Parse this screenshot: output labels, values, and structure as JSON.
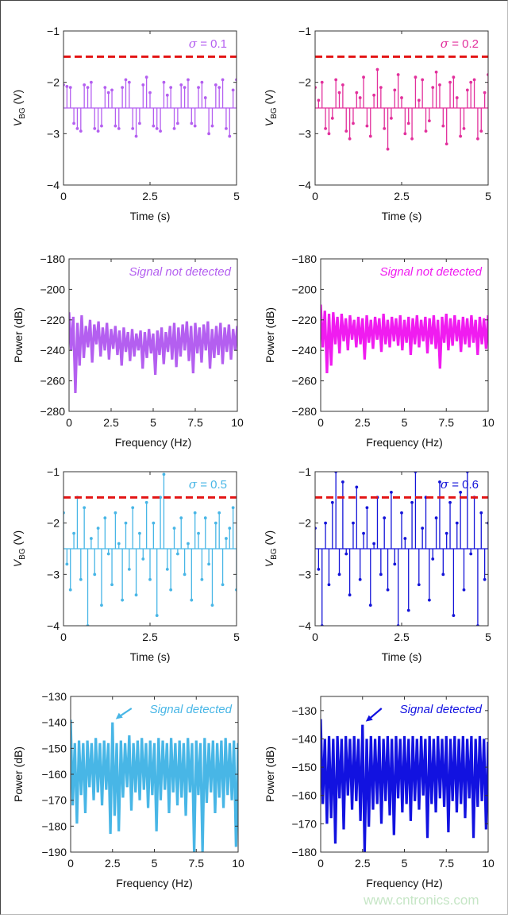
{
  "watermark": "www.cntronics.com",
  "chart_data": [
    {
      "type": "stem",
      "xlabel": "Time (s)",
      "ylabel": "V",
      "ylabel_sub": "BG",
      "ylabel_unit": " (V)",
      "xlim": [
        0,
        5
      ],
      "ylim": [
        -4,
        -1
      ],
      "xticks": [
        "0",
        "2.5",
        "5"
      ],
      "yticks": [
        "-4",
        "-3",
        "-2",
        "-1"
      ],
      "annotation": "σ = 0.1",
      "color": "#b45ff0",
      "threshold": -1.5,
      "threshold_color": "#e31414",
      "baseline": -2.5,
      "x_start": 0,
      "x_end": 5,
      "values": [
        -2.05,
        -2.08,
        -2.1,
        -2.8,
        -2.9,
        -2.95,
        -2.05,
        -2.1,
        -2.0,
        -2.9,
        -2.95,
        -2.85,
        -2.1,
        -2.2,
        -2.15,
        -2.85,
        -2.9,
        -2.1,
        -1.95,
        -2.0,
        -2.9,
        -3.05,
        -2.8,
        -2.05,
        -1.9,
        -2.2,
        -2.85,
        -2.9,
        -2.95,
        -2.0,
        -2.25,
        -2.1,
        -2.9,
        -2.8,
        -2.05,
        -2.1,
        -1.95,
        -2.8,
        -2.85,
        -2.1,
        -2.0,
        -2.3,
        -3.0,
        -2.85,
        -2.05,
        -2.1,
        -1.95,
        -2.9,
        -3.05,
        -2.15,
        -1.95
      ]
    },
    {
      "type": "stem",
      "xlabel": "Time (s)",
      "ylabel": "V",
      "ylabel_sub": "BG",
      "ylabel_unit": " (V)",
      "xlim": [
        0,
        5
      ],
      "ylim": [
        -4,
        -1
      ],
      "xticks": [
        "0",
        "2.5",
        "5"
      ],
      "yticks": [
        "-4",
        "-3",
        "-2",
        "-1"
      ],
      "annotation": "σ = 0.2",
      "color": "#e2309c",
      "threshold": -1.5,
      "threshold_color": "#e31414",
      "baseline": -2.5,
      "x_start": 0,
      "x_end": 5,
      "values": [
        -2.1,
        -2.35,
        -2.0,
        -2.9,
        -3.0,
        -2.7,
        -1.95,
        -2.2,
        -2.05,
        -2.95,
        -3.1,
        -2.8,
        -2.2,
        -2.3,
        -1.9,
        -2.85,
        -3.05,
        -2.25,
        -1.75,
        -2.1,
        -2.9,
        -3.3,
        -2.7,
        -2.15,
        -1.85,
        -2.3,
        -3.0,
        -2.8,
        -3.1,
        -1.9,
        -2.35,
        -1.95,
        -2.95,
        -2.75,
        -2.1,
        -1.8,
        -2.05,
        -2.85,
        -3.2,
        -2.0,
        -1.9,
        -2.3,
        -3.05,
        -2.9,
        -2.15,
        -2.0,
        -1.95,
        -3.1,
        -2.95,
        -2.2,
        -1.85
      ]
    },
    {
      "type": "line",
      "xlabel": "Frequency (Hz)",
      "ylabel": "Power (dB)",
      "xlim": [
        0,
        10
      ],
      "ylim": [
        -280,
        -180
      ],
      "xticks": [
        "0",
        "2.5",
        "5",
        "7.5",
        "10"
      ],
      "yticks": [
        "-280",
        "-260",
        "-240",
        "-220",
        "-180"
      ],
      "yticks_all": [
        "-280",
        "-260",
        "-240",
        "-220",
        "-200",
        "-180"
      ],
      "annotation": "Signal not detected",
      "color": "#b45ff0",
      "x_start": 0,
      "x_end": 10,
      "values": [
        -215,
        -240,
        -218,
        -268,
        -222,
        -250,
        -217,
        -245,
        -224,
        -238,
        -220,
        -248,
        -223,
        -236,
        -221,
        -244,
        -225,
        -240,
        -222,
        -246,
        -226,
        -239,
        -224,
        -243,
        -227,
        -250,
        -225,
        -241,
        -228,
        -247,
        -226,
        -244,
        -229,
        -240,
        -227,
        -252,
        -228,
        -245,
        -226,
        -242,
        -229,
        -256,
        -227,
        -243,
        -225,
        -249,
        -228,
        -241,
        -224,
        -246,
        -222,
        -251,
        -225,
        -244,
        -223,
        -240,
        -221,
        -247,
        -224,
        -255,
        -222,
        -242,
        -225,
        -248,
        -223,
        -240,
        -221,
        -252,
        -226,
        -245,
        -224,
        -243,
        -222,
        -249,
        -225,
        -241,
        -223,
        -246,
        -226,
        -240,
        -224
      ]
    },
    {
      "type": "line",
      "xlabel": "Frequency (Hz)",
      "ylabel": "Power (dB)",
      "xlim": [
        0,
        10
      ],
      "ylim": [
        -280,
        -180
      ],
      "xticks": [
        "0",
        "2.5",
        "5",
        "7.5",
        "10"
      ],
      "yticks_all": [
        "-280",
        "-260",
        "-240",
        "-220",
        "-200",
        "-180"
      ],
      "annotation": "Signal not detected",
      "color": "#f01cf0",
      "x_start": 0,
      "x_end": 10,
      "values": [
        -210,
        -238,
        -214,
        -255,
        -216,
        -250,
        -215,
        -236,
        -218,
        -242,
        -216,
        -234,
        -219,
        -240,
        -217,
        -233,
        -220,
        -238,
        -218,
        -236,
        -219,
        -246,
        -217,
        -235,
        -220,
        -239,
        -218,
        -233,
        -219,
        -241,
        -216,
        -236,
        -220,
        -238,
        -218,
        -234,
        -219,
        -237,
        -217,
        -240,
        -220,
        -235,
        -218,
        -243,
        -219,
        -236,
        -217,
        -238,
        -220,
        -234,
        -218,
        -242,
        -219,
        -236,
        -217,
        -239,
        -220,
        -252,
        -218,
        -235,
        -216,
        -240,
        -219,
        -237,
        -217,
        -234,
        -220,
        -241,
        -218,
        -236,
        -219,
        -238,
        -217,
        -235,
        -220,
        -243,
        -218,
        -236,
        -219,
        -239,
        -217
      ]
    },
    {
      "type": "stem",
      "xlabel": "Time (s)",
      "ylabel": "V",
      "ylabel_sub": "BG",
      "ylabel_unit": " (V)",
      "xlim": [
        0,
        5
      ],
      "ylim": [
        -4,
        -1
      ],
      "xticks": [
        "0",
        "2.5",
        "5"
      ],
      "yticks": [
        "-4",
        "-3",
        "-2",
        "-1"
      ],
      "annotation": "σ = 0.5",
      "color": "#48b6e6",
      "threshold": -1.5,
      "threshold_color": "#e31414",
      "baseline": -2.5,
      "x_start": 0,
      "x_end": 5,
      "values": [
        -1.8,
        -2.8,
        -3.3,
        -2.2,
        -1.5,
        -3.1,
        -1.7,
        -4.0,
        -2.3,
        -3.0,
        -2.1,
        -3.6,
        -1.9,
        -2.6,
        -3.2,
        -1.8,
        -2.4,
        -3.5,
        -2.0,
        -2.9,
        -1.7,
        -3.4,
        -2.2,
        -2.7,
        -1.6,
        -3.1,
        -2.0,
        -3.8,
        -1.5,
        -1.05,
        -2.9,
        -3.3,
        -2.1,
        -2.6,
        -1.9,
        -3.0,
        -2.4,
        -3.5,
        -1.8,
        -2.2,
        -3.1,
        -1.9,
        -2.8,
        -3.6,
        -2.0,
        -1.8,
        -3.2,
        -2.3,
        -2.1,
        -1.7,
        -3.3
      ]
    },
    {
      "type": "stem",
      "xlabel": "Time (s)",
      "ylabel": "V",
      "ylabel_sub": "BG",
      "ylabel_unit": " (V)",
      "xlim": [
        0,
        5
      ],
      "ylim": [
        -4,
        -1
      ],
      "xticks": [
        "0",
        "2.5",
        "5"
      ],
      "yticks": [
        "-4",
        "-3",
        "-2",
        "-1"
      ],
      "annotation": "σ = 0.6",
      "color": "#1414d8",
      "threshold": -1.5,
      "threshold_color": "#e31414",
      "baseline": -2.5,
      "x_start": 0,
      "x_end": 5,
      "values": [
        -2.1,
        -2.9,
        -4.0,
        -2.0,
        -3.2,
        -1.6,
        -1.0,
        -3.0,
        -1.2,
        -2.6,
        -3.4,
        -2.0,
        -1.3,
        -3.1,
        -2.2,
        -1.7,
        -3.6,
        -2.4,
        -1.5,
        -3.0,
        -1.9,
        -3.3,
        -1.4,
        -2.8,
        -4.0,
        -1.8,
        -2.3,
        -3.7,
        -1.6,
        -1.0,
        -3.2,
        -2.1,
        -1.5,
        -3.5,
        -2.7,
        -1.9,
        -1.2,
        -3.0,
        -2.2,
        -1.6,
        -3.8,
        -2.0,
        -1.4,
        -3.3,
        -1.0,
        -2.6,
        -1.5,
        -4.0,
        -1.8,
        -3.1,
        -2.0
      ]
    },
    {
      "type": "line",
      "xlabel": "Frequency (Hz)",
      "ylabel": "Power (dB)",
      "xlim": [
        0,
        10
      ],
      "ylim": [
        -190,
        -130
      ],
      "xticks": [
        "0",
        "2.5",
        "5",
        "7.5",
        "10"
      ],
      "yticks_all": [
        "-190",
        "-180",
        "-170",
        "-160",
        "-150",
        "-140",
        "-130"
      ],
      "annotation": "Signal detected",
      "annotation_target_x": 2.5,
      "color": "#48b6e6",
      "x_start": 0,
      "x_end": 10,
      "values": [
        -139,
        -172,
        -148,
        -179,
        -147,
        -168,
        -148,
        -175,
        -147,
        -165,
        -148,
        -170,
        -146,
        -167,
        -148,
        -172,
        -147,
        -166,
        -148,
        -183,
        -140,
        -176,
        -148,
        -182,
        -147,
        -169,
        -148,
        -165,
        -145,
        -174,
        -148,
        -167,
        -147,
        -170,
        -146,
        -166,
        -148,
        -173,
        -147,
        -168,
        -148,
        -182,
        -146,
        -170,
        -147,
        -166,
        -148,
        -175,
        -146,
        -167,
        -148,
        -172,
        -147,
        -169,
        -148,
        -176,
        -146,
        -167,
        -148,
        -190,
        -147,
        -168,
        -148,
        -190,
        -146,
        -171,
        -148,
        -167,
        -147,
        -175,
        -148,
        -169,
        -147,
        -173,
        -146,
        -168,
        -148,
        -170,
        -147,
        -188,
        -148
      ]
    },
    {
      "type": "line",
      "xlabel": "Frequency (Hz)",
      "ylabel": "Power (dB)",
      "xlim": [
        0,
        10
      ],
      "ylim": [
        -180,
        -125
      ],
      "xticks": [
        "0",
        "2.5",
        "5",
        "7.5",
        "10"
      ],
      "yticks_all": [
        "-180",
        "-170",
        "-160",
        "-150",
        "-140",
        "-130"
      ],
      "annotation": "Signal detected",
      "annotation_target_x": 2.5,
      "color": "#1212e0",
      "x_start": 0,
      "x_end": 10,
      "values": [
        -133,
        -163,
        -140,
        -170,
        -139,
        -168,
        -140,
        -177,
        -139,
        -161,
        -140,
        -172,
        -139,
        -160,
        -140,
        -165,
        -139,
        -162,
        -140,
        -169,
        -135,
        -180,
        -140,
        -171,
        -139,
        -165,
        -140,
        -163,
        -139,
        -170,
        -140,
        -162,
        -139,
        -167,
        -140,
        -174,
        -139,
        -161,
        -140,
        -166,
        -139,
        -163,
        -140,
        -169,
        -139,
        -162,
        -140,
        -165,
        -139,
        -160,
        -140,
        -175,
        -139,
        -163,
        -140,
        -166,
        -139,
        -161,
        -140,
        -164,
        -139,
        -173,
        -140,
        -162,
        -139,
        -166,
        -140,
        -163,
        -139,
        -168,
        -140,
        -161,
        -139,
        -175,
        -140,
        -164,
        -139,
        -162,
        -140,
        -172,
        -141
      ]
    }
  ]
}
